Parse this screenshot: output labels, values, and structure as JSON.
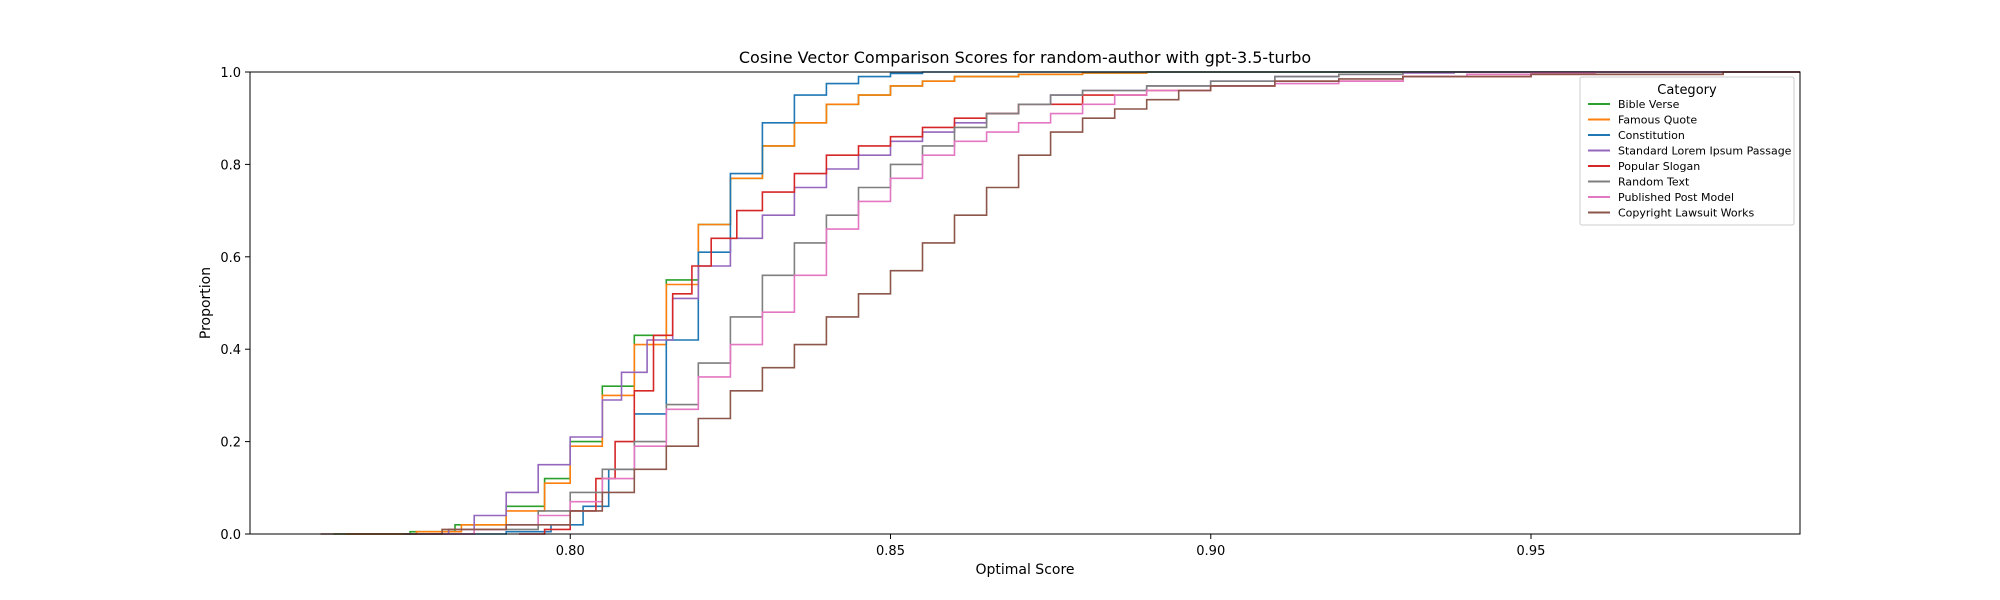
{
  "chart_data": {
    "type": "line",
    "title": "Cosine Vector Comparison Scores for random-author with gpt-3.5-turbo",
    "xlabel": "Optimal Score",
    "ylabel": "Proportion",
    "xlim": [
      0.75,
      0.992
    ],
    "ylim": [
      0,
      1.0
    ],
    "x_ticks": [
      0.8,
      0.85,
      0.9,
      0.95
    ],
    "x_tick_labels": [
      "0.80",
      "0.85",
      "0.90",
      "0.95"
    ],
    "y_ticks": [
      0.0,
      0.2,
      0.4,
      0.6,
      0.8,
      1.0
    ],
    "y_tick_labels": [
      "0.0",
      "0.2",
      "0.4",
      "0.6",
      "0.8",
      "1.0"
    ],
    "grid": false,
    "legend": {
      "title": "Category",
      "placement": "top-right"
    },
    "series": [
      {
        "name": "Bible Verse",
        "color": "#2ca02c",
        "x": [
          0.763,
          0.775,
          0.782,
          0.79,
          0.796,
          0.8,
          0.805,
          0.81,
          0.815,
          0.82,
          0.825,
          0.83,
          0.835,
          0.84,
          0.845,
          0.85,
          0.855,
          0.86,
          0.87,
          0.88,
          0.89,
          0.9
        ],
        "y": [
          0.0,
          0.005,
          0.02,
          0.06,
          0.12,
          0.2,
          0.32,
          0.43,
          0.55,
          0.67,
          0.77,
          0.84,
          0.89,
          0.93,
          0.95,
          0.97,
          0.98,
          0.99,
          0.995,
          0.998,
          1.0,
          1.0
        ]
      },
      {
        "name": "Famous Quote",
        "color": "#ff7f0e",
        "x": [
          0.765,
          0.776,
          0.783,
          0.79,
          0.796,
          0.8,
          0.805,
          0.81,
          0.815,
          0.82,
          0.825,
          0.83,
          0.835,
          0.84,
          0.845,
          0.85,
          0.855,
          0.86,
          0.87,
          0.88,
          0.89,
          0.9
        ],
        "y": [
          0.0,
          0.005,
          0.02,
          0.05,
          0.11,
          0.19,
          0.3,
          0.41,
          0.54,
          0.67,
          0.77,
          0.84,
          0.89,
          0.93,
          0.95,
          0.97,
          0.98,
          0.99,
          0.995,
          0.998,
          1.0,
          1.0
        ]
      },
      {
        "name": "Constitution",
        "color": "#1f77b4",
        "x": [
          0.778,
          0.79,
          0.797,
          0.802,
          0.806,
          0.81,
          0.815,
          0.82,
          0.825,
          0.83,
          0.835,
          0.84,
          0.845,
          0.85,
          0.855,
          0.86
        ],
        "y": [
          0.0,
          0.005,
          0.02,
          0.06,
          0.14,
          0.26,
          0.42,
          0.61,
          0.78,
          0.89,
          0.95,
          0.975,
          0.99,
          0.997,
          1.0,
          1.0
        ]
      },
      {
        "name": "Standard Lorem Ipsum Passage",
        "color": "#9467bd",
        "x": [
          0.774,
          0.781,
          0.785,
          0.79,
          0.795,
          0.8,
          0.805,
          0.808,
          0.812,
          0.816,
          0.82,
          0.825,
          0.83,
          0.835,
          0.84,
          0.845,
          0.85,
          0.855,
          0.86,
          0.865,
          0.87,
          0.875,
          0.88,
          0.89,
          0.9,
          0.91,
          0.92,
          0.93,
          0.938
        ],
        "y": [
          0.0,
          0.01,
          0.04,
          0.09,
          0.15,
          0.21,
          0.29,
          0.35,
          0.42,
          0.51,
          0.58,
          0.64,
          0.69,
          0.75,
          0.79,
          0.82,
          0.85,
          0.87,
          0.89,
          0.91,
          0.93,
          0.95,
          0.96,
          0.97,
          0.98,
          0.99,
          0.995,
          0.998,
          1.0
        ]
      },
      {
        "name": "Popular Slogan",
        "color": "#d62728",
        "x": [
          0.792,
          0.796,
          0.8,
          0.804,
          0.807,
          0.81,
          0.813,
          0.816,
          0.819,
          0.822,
          0.826,
          0.83,
          0.835,
          0.84,
          0.845,
          0.85,
          0.855,
          0.86,
          0.865,
          0.87,
          0.88,
          0.89,
          0.9,
          0.91,
          0.93,
          0.95,
          0.98
        ],
        "y": [
          0.0,
          0.01,
          0.05,
          0.12,
          0.2,
          0.31,
          0.43,
          0.52,
          0.58,
          0.64,
          0.7,
          0.74,
          0.78,
          0.82,
          0.84,
          0.86,
          0.88,
          0.9,
          0.91,
          0.93,
          0.95,
          0.96,
          0.97,
          0.98,
          0.99,
          0.995,
          1.0
        ]
      },
      {
        "name": "Random Text",
        "color": "#7f7f7f",
        "x": [
          0.774,
          0.785,
          0.795,
          0.8,
          0.805,
          0.81,
          0.815,
          0.82,
          0.825,
          0.83,
          0.835,
          0.84,
          0.845,
          0.85,
          0.855,
          0.86,
          0.865,
          0.87,
          0.875,
          0.88,
          0.89,
          0.9,
          0.91,
          0.92,
          0.93
        ],
        "y": [
          0.0,
          0.01,
          0.05,
          0.09,
          0.14,
          0.2,
          0.28,
          0.37,
          0.47,
          0.56,
          0.63,
          0.69,
          0.75,
          0.8,
          0.84,
          0.88,
          0.91,
          0.93,
          0.95,
          0.96,
          0.97,
          0.98,
          0.99,
          0.995,
          1.0
        ]
      },
      {
        "name": "Published Post Model",
        "color": "#e377c2",
        "x": [
          0.778,
          0.785,
          0.79,
          0.795,
          0.8,
          0.805,
          0.81,
          0.815,
          0.82,
          0.825,
          0.83,
          0.835,
          0.84,
          0.845,
          0.85,
          0.855,
          0.86,
          0.865,
          0.87,
          0.875,
          0.88,
          0.885,
          0.89,
          0.9,
          0.91,
          0.92,
          0.93,
          0.94,
          0.95,
          0.96
        ],
        "y": [
          0.0,
          0.01,
          0.02,
          0.04,
          0.07,
          0.12,
          0.19,
          0.27,
          0.34,
          0.41,
          0.48,
          0.56,
          0.66,
          0.72,
          0.77,
          0.82,
          0.85,
          0.87,
          0.89,
          0.91,
          0.93,
          0.95,
          0.96,
          0.97,
          0.975,
          0.98,
          0.99,
          0.995,
          0.998,
          1.0
        ]
      },
      {
        "name": "Copyright Lawsuit Works",
        "color": "#8c564b",
        "x": [
          0.761,
          0.78,
          0.79,
          0.8,
          0.805,
          0.81,
          0.815,
          0.82,
          0.825,
          0.83,
          0.835,
          0.84,
          0.845,
          0.85,
          0.855,
          0.86,
          0.865,
          0.87,
          0.875,
          0.88,
          0.885,
          0.89,
          0.895,
          0.9,
          0.91,
          0.92,
          0.93,
          0.95,
          0.98
        ],
        "y": [
          0.0,
          0.01,
          0.02,
          0.05,
          0.09,
          0.14,
          0.19,
          0.25,
          0.31,
          0.36,
          0.41,
          0.47,
          0.52,
          0.57,
          0.63,
          0.69,
          0.75,
          0.82,
          0.87,
          0.9,
          0.92,
          0.94,
          0.96,
          0.97,
          0.98,
          0.985,
          0.99,
          0.995,
          1.0
        ]
      }
    ]
  }
}
